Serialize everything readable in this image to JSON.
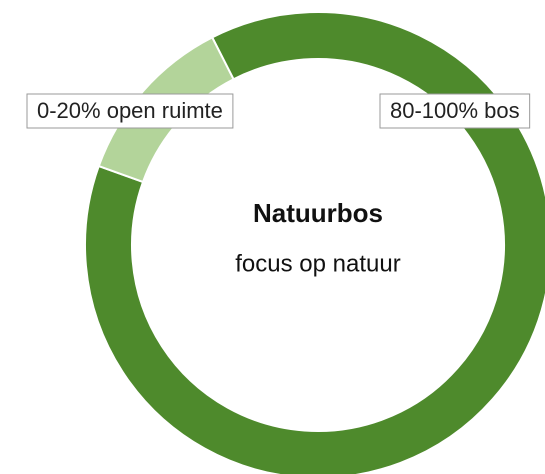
{
  "chart_data": {
    "type": "donut",
    "title": "Natuurbos",
    "subtitle": "focus op natuur",
    "categories": [
      "80-100% bos",
      "0-20% open ruimte"
    ],
    "values": [
      88,
      12
    ],
    "colors": [
      "#4e8a2c",
      "#b3d49a"
    ]
  }
}
